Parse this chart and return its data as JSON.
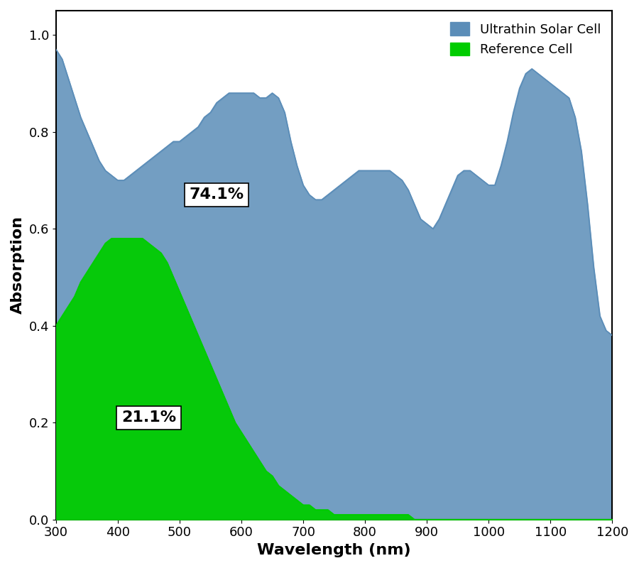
{
  "xlabel": "Wavelength (nm)",
  "ylabel": "Absorption",
  "xlim": [
    300,
    1200
  ],
  "ylim": [
    0.0,
    1.05
  ],
  "yticks": [
    0.0,
    0.2,
    0.4,
    0.6,
    0.8,
    1.0
  ],
  "xticks": [
    300,
    400,
    500,
    600,
    700,
    800,
    900,
    1000,
    1100,
    1200
  ],
  "blue_color": "#5B8DB8",
  "green_color": "#00CC00",
  "blue_label": "Ultrathin Solar Cell",
  "green_label": "Reference Cell",
  "annotation_blue": "74.1%",
  "annotation_green": "21.1%",
  "blue_x": [
    300,
    310,
    320,
    330,
    340,
    350,
    360,
    370,
    380,
    390,
    400,
    410,
    420,
    430,
    440,
    450,
    460,
    470,
    480,
    490,
    500,
    510,
    520,
    530,
    540,
    550,
    560,
    570,
    580,
    590,
    600,
    610,
    620,
    630,
    640,
    650,
    660,
    670,
    680,
    690,
    700,
    710,
    720,
    730,
    740,
    750,
    760,
    770,
    780,
    790,
    800,
    810,
    820,
    830,
    840,
    850,
    860,
    870,
    880,
    890,
    900,
    910,
    920,
    930,
    940,
    950,
    960,
    970,
    980,
    990,
    1000,
    1010,
    1020,
    1030,
    1040,
    1050,
    1060,
    1070,
    1080,
    1090,
    1100,
    1110,
    1120,
    1130,
    1140,
    1150,
    1160,
    1170,
    1180,
    1190,
    1200
  ],
  "blue_y": [
    0.97,
    0.95,
    0.91,
    0.87,
    0.83,
    0.8,
    0.77,
    0.74,
    0.72,
    0.71,
    0.7,
    0.7,
    0.71,
    0.72,
    0.73,
    0.74,
    0.75,
    0.76,
    0.77,
    0.78,
    0.78,
    0.79,
    0.8,
    0.81,
    0.83,
    0.84,
    0.86,
    0.87,
    0.88,
    0.88,
    0.88,
    0.88,
    0.88,
    0.87,
    0.87,
    0.88,
    0.87,
    0.84,
    0.78,
    0.73,
    0.69,
    0.67,
    0.66,
    0.66,
    0.67,
    0.68,
    0.69,
    0.7,
    0.71,
    0.72,
    0.72,
    0.72,
    0.72,
    0.72,
    0.72,
    0.71,
    0.7,
    0.68,
    0.65,
    0.62,
    0.61,
    0.6,
    0.62,
    0.65,
    0.68,
    0.71,
    0.72,
    0.72,
    0.71,
    0.7,
    0.69,
    0.69,
    0.73,
    0.78,
    0.84,
    0.89,
    0.92,
    0.93,
    0.92,
    0.91,
    0.9,
    0.89,
    0.88,
    0.87,
    0.83,
    0.76,
    0.65,
    0.52,
    0.42,
    0.39,
    0.38
  ],
  "green_x": [
    300,
    310,
    320,
    330,
    340,
    350,
    360,
    370,
    380,
    390,
    400,
    410,
    420,
    430,
    440,
    450,
    460,
    470,
    480,
    490,
    500,
    510,
    520,
    530,
    540,
    550,
    560,
    570,
    580,
    590,
    600,
    610,
    620,
    630,
    640,
    650,
    660,
    670,
    680,
    690,
    700,
    710,
    720,
    730,
    740,
    750,
    760,
    770,
    780,
    790,
    800,
    810,
    820,
    830,
    840,
    850,
    860,
    870,
    880,
    890,
    900,
    950,
    1000,
    1050,
    1100,
    1150,
    1200
  ],
  "green_y": [
    0.4,
    0.42,
    0.44,
    0.46,
    0.49,
    0.51,
    0.53,
    0.55,
    0.57,
    0.58,
    0.58,
    0.58,
    0.58,
    0.58,
    0.58,
    0.57,
    0.56,
    0.55,
    0.53,
    0.5,
    0.47,
    0.44,
    0.41,
    0.38,
    0.35,
    0.32,
    0.29,
    0.26,
    0.23,
    0.2,
    0.18,
    0.16,
    0.14,
    0.12,
    0.1,
    0.09,
    0.07,
    0.06,
    0.05,
    0.04,
    0.03,
    0.03,
    0.02,
    0.02,
    0.02,
    0.01,
    0.01,
    0.01,
    0.01,
    0.01,
    0.01,
    0.01,
    0.01,
    0.01,
    0.01,
    0.01,
    0.01,
    0.01,
    0.0,
    0.0,
    0.0,
    0.0,
    0.0,
    0.0,
    0.0,
    0.0,
    0.0
  ]
}
